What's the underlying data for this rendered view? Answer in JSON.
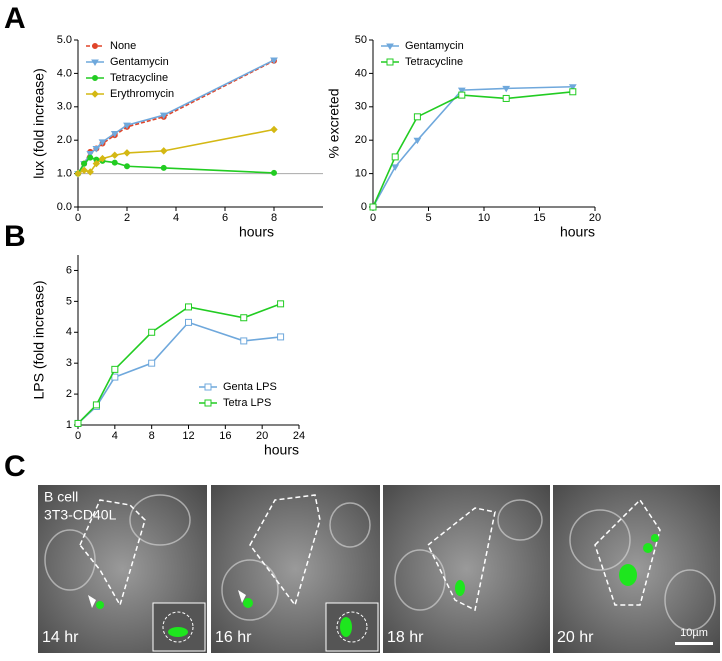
{
  "panel_labels": [
    "A",
    "B",
    "C"
  ],
  "chart_data": [
    {
      "type": "line",
      "xlabel": "hours",
      "ylabel": "lux (fold increase)",
      "x": [
        0,
        0.25,
        0.5,
        0.75,
        1,
        1.5,
        2,
        3.5,
        8
      ],
      "series": [
        {
          "name": "None",
          "color": "#e0452a",
          "marker": "circle",
          "line_style": "dashed",
          "values": [
            1.0,
            1.3,
            1.65,
            1.75,
            1.9,
            2.15,
            2.4,
            2.7,
            4.38
          ]
        },
        {
          "name": "Gentamycin",
          "color": "#6fa8dc",
          "marker": "triangle",
          "line_style": "solid",
          "values": [
            1.0,
            1.3,
            1.6,
            1.75,
            1.95,
            2.2,
            2.45,
            2.75,
            4.4
          ]
        },
        {
          "name": "Tetracycline",
          "color": "#22cc22",
          "marker": "circle",
          "line_style": "solid",
          "values": [
            1.0,
            1.3,
            1.48,
            1.42,
            1.38,
            1.33,
            1.22,
            1.17,
            1.02
          ]
        },
        {
          "name": "Erythromycin",
          "color": "#d4b814",
          "marker": "diamond",
          "line_style": "solid",
          "values": [
            1.0,
            1.1,
            1.05,
            1.3,
            1.45,
            1.55,
            1.62,
            1.68,
            2.32
          ]
        }
      ],
      "xlim": [
        0,
        10
      ],
      "xticks": [
        0,
        2,
        4,
        6,
        8
      ],
      "ylim": [
        0,
        5
      ],
      "yticks": [
        {
          "value": 0,
          "label": "0.0"
        },
        {
          "value": 1,
          "label": "1.0"
        },
        {
          "value": 2,
          "label": "2.0"
        },
        {
          "value": 3,
          "label": "3.0"
        },
        {
          "value": 4,
          "label": "4.0"
        },
        {
          "value": 5,
          "label": "5.0"
        }
      ],
      "reference_line": 1,
      "legend": "upper left"
    },
    {
      "type": "line",
      "xlabel": "hours",
      "ylabel": "% excreted",
      "x": [
        0,
        2,
        4,
        8,
        12,
        18
      ],
      "series": [
        {
          "name": "Gentamycin",
          "color": "#6fa8dc",
          "marker": "triangle",
          "line_style": "solid",
          "values": [
            0,
            12,
            20,
            35,
            35.5,
            36
          ]
        },
        {
          "name": "Tetracycline",
          "color": "#22cc22",
          "marker": "square",
          "line_style": "solid",
          "values": [
            0,
            15,
            27,
            33.5,
            32.5,
            34.5
          ]
        }
      ],
      "xlim": [
        0,
        20
      ],
      "xticks": [
        0,
        5,
        10,
        15,
        20
      ],
      "ylim": [
        0,
        50
      ],
      "yticks": [
        0,
        10,
        20,
        30,
        40,
        50
      ],
      "legend": "upper left"
    },
    {
      "type": "line",
      "xlabel": "hours",
      "ylabel": "LPS (fold increase)",
      "x": [
        0,
        2,
        4,
        8,
        12,
        18,
        22
      ],
      "series": [
        {
          "name": "Genta LPS",
          "color": "#6fa8dc",
          "marker": "square",
          "line_style": "solid",
          "values": [
            1.05,
            1.6,
            2.55,
            3.0,
            4.32,
            3.72,
            3.85
          ]
        },
        {
          "name": "Tetra LPS",
          "color": "#22cc22",
          "marker": "square",
          "line_style": "solid",
          "values": [
            1.05,
            1.65,
            2.8,
            4.0,
            4.82,
            4.47,
            4.92
          ]
        }
      ],
      "xlim": [
        0,
        24
      ],
      "xticks": [
        0,
        4,
        8,
        12,
        16,
        20,
        24
      ],
      "ylim": [
        1,
        6.5
      ],
      "yticks": [
        1,
        2,
        3,
        4,
        5,
        6
      ],
      "legend": "lower right"
    }
  ],
  "micrographs": {
    "cell_labels": [
      "B cell",
      "3T3-CD40L"
    ],
    "time_labels": [
      "14 hr",
      "16 hr",
      "18 hr",
      "20 hr"
    ],
    "scale_bar": "10µm"
  }
}
